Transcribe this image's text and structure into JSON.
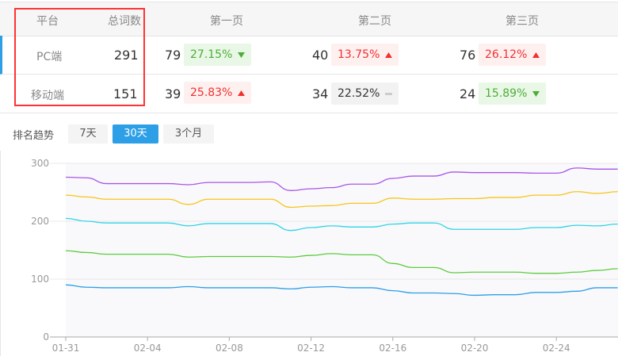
{
  "table": {
    "headers": [
      "平台",
      "总词数",
      "第一页",
      "第二页",
      "第三页"
    ],
    "rows": [
      {
        "platform": "PC端",
        "total": "291",
        "p1": "79",
        "p1_pct": "27.15%",
        "p1_trend": "down",
        "p2": "40",
        "p2_pct": "13.75%",
        "p2_trend": "up",
        "p3": "76",
        "p3_pct": "26.12%",
        "p3_trend": "up"
      },
      {
        "platform": "移动端",
        "total": "151",
        "p1": "39",
        "p1_pct": "25.83%",
        "p1_trend": "up",
        "p2": "34",
        "p2_pct": "22.52%",
        "p2_trend": "flat",
        "p3": "24",
        "p3_pct": "15.89%",
        "p3_trend": "down"
      }
    ]
  },
  "trend": {
    "label": "排名趋势",
    "tabs": [
      "7天",
      "30天",
      "3个月"
    ],
    "active_tab": "30天"
  },
  "colors": {
    "up": "#f23030",
    "down": "#4cae38",
    "accent": "#2d9fe6",
    "highlight_box": "#ff3333"
  },
  "chart_data": {
    "type": "line",
    "x": [
      "01-31",
      "02-01",
      "02-02",
      "02-03",
      "02-04",
      "02-05",
      "02-06",
      "02-07",
      "02-08",
      "02-09",
      "02-10",
      "02-11",
      "02-12",
      "02-13",
      "02-14",
      "02-15",
      "02-16",
      "02-17",
      "02-18",
      "02-19",
      "02-20",
      "02-21",
      "02-22",
      "02-23",
      "02-24",
      "02-25",
      "02-26",
      "02-27"
    ],
    "xticks": [
      "01-31",
      "02-04",
      "02-08",
      "02-12",
      "02-16",
      "02-20",
      "02-24"
    ],
    "yticks": [
      "0",
      "100",
      "200",
      "300"
    ],
    "ylim": [
      0,
      300
    ],
    "grid": true,
    "series": [
      {
        "color": "#a855e8",
        "values": [
          276,
          275,
          265,
          265,
          265,
          265,
          263,
          267,
          267,
          267,
          268,
          253,
          256,
          258,
          264,
          264,
          274,
          278,
          278,
          285,
          284,
          284,
          284,
          283,
          283,
          292,
          290,
          290
        ]
      },
      {
        "color": "#f5c518",
        "values": [
          245,
          242,
          238,
          238,
          238,
          238,
          229,
          238,
          238,
          238,
          238,
          224,
          226,
          227,
          231,
          231,
          240,
          238,
          238,
          239,
          239,
          241,
          241,
          245,
          245,
          251,
          248,
          251
        ]
      },
      {
        "color": "#2fd4e6",
        "values": [
          205,
          200,
          197,
          197,
          197,
          197,
          192,
          196,
          196,
          196,
          196,
          184,
          189,
          192,
          190,
          190,
          195,
          197,
          197,
          186,
          186,
          186,
          186,
          189,
          189,
          193,
          192,
          195
        ]
      },
      {
        "color": "#5ccc3c",
        "values": [
          149,
          146,
          143,
          143,
          143,
          143,
          138,
          139,
          139,
          139,
          139,
          138,
          141,
          144,
          142,
          142,
          127,
          120,
          120,
          111,
          112,
          112,
          112,
          110,
          110,
          112,
          115,
          118
        ]
      },
      {
        "color": "#2d9fe6",
        "values": [
          90,
          86,
          85,
          85,
          85,
          85,
          87,
          85,
          85,
          85,
          85,
          83,
          86,
          87,
          85,
          85,
          80,
          76,
          76,
          75,
          72,
          73,
          73,
          77,
          77,
          79,
          85,
          85
        ]
      }
    ]
  }
}
